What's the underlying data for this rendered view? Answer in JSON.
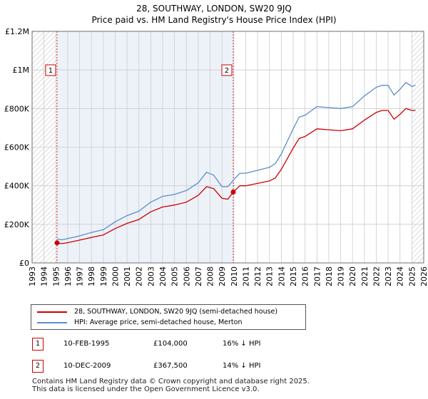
{
  "title": {
    "line1": "28, SOUTHWAY, LONDON, SW20 9JQ",
    "line2": "Price paid vs. HM Land Registry's House Price Index (HPI)"
  },
  "colors": {
    "property": "#cc0000",
    "hpi": "#5b8ec7",
    "shade": "#dbe5f3",
    "grid": "#cccccc",
    "marker_border": "#cc0000"
  },
  "chart_data": {
    "type": "line",
    "title": "Price paid vs. HM Land Registry's House Price Index (HPI)",
    "xlim": [
      1993,
      2026
    ],
    "ylim": [
      0,
      1200000
    ],
    "x_ticks": [
      1993,
      1994,
      1995,
      1996,
      1997,
      1998,
      1999,
      2000,
      2001,
      2002,
      2003,
      2004,
      2005,
      2006,
      2007,
      2008,
      2009,
      2010,
      2011,
      2012,
      2013,
      2014,
      2015,
      2016,
      2017,
      2018,
      2019,
      2020,
      2021,
      2022,
      2023,
      2024,
      2025,
      2026
    ],
    "y_ticks": [
      {
        "value": 0,
        "label": "£0"
      },
      {
        "value": 200000,
        "label": "£200K"
      },
      {
        "value": 400000,
        "label": "£400K"
      },
      {
        "value": 600000,
        "label": "£600K"
      },
      {
        "value": 800000,
        "label": "£800K"
      },
      {
        "value": 1000000,
        "label": "£1M"
      },
      {
        "value": 1200000,
        "label": "£1.2M"
      }
    ],
    "grid": true,
    "hatched_regions": [
      [
        1993,
        1995.1
      ],
      [
        2025.0,
        2026
      ]
    ],
    "shaded_region": [
      1995.1,
      2009.95
    ],
    "series": [
      {
        "name": "28, SOUTHWAY, LONDON, SW20 9JQ (semi-detached house)",
        "color": "#cc0000",
        "x": [
          1995.1,
          1995.5,
          1996,
          1997,
          1998,
          1999,
          2000,
          2001,
          2002,
          2003,
          2004,
          2005,
          2006,
          2007,
          2007.7,
          2008.3,
          2009,
          2009.5,
          2009.95,
          2010.5,
          2011,
          2012,
          2013,
          2013.5,
          2014,
          2014.5,
          2015,
          2015.5,
          2016,
          2017,
          2018,
          2019,
          2020,
          2021,
          2022,
          2022.5,
          2023,
          2023.5,
          2024,
          2024.5,
          2025,
          2025.3
        ],
        "values": [
          104000,
          100000,
          105000,
          118000,
          132000,
          145000,
          178000,
          205000,
          225000,
          265000,
          290000,
          300000,
          315000,
          350000,
          395000,
          385000,
          335000,
          330000,
          367500,
          400000,
          400000,
          412000,
          425000,
          440000,
          485000,
          540000,
          595000,
          645000,
          655000,
          695000,
          690000,
          685000,
          695000,
          740000,
          780000,
          790000,
          790000,
          745000,
          770000,
          800000,
          790000,
          790000
        ]
      },
      {
        "name": "HPI: Average price, semi-detached house, Merton",
        "color": "#5b8ec7",
        "x": [
          1995.1,
          1995.5,
          1996,
          1997,
          1998,
          1999,
          2000,
          2001,
          2002,
          2003,
          2004,
          2005,
          2006,
          2007,
          2007.7,
          2008.3,
          2009,
          2009.5,
          2009.95,
          2010.5,
          2011,
          2012,
          2013,
          2013.5,
          2014,
          2014.5,
          2015,
          2015.5,
          2016,
          2017,
          2018,
          2019,
          2020,
          2021,
          2022,
          2022.5,
          2023,
          2023.5,
          2024,
          2024.5,
          2025,
          2025.3
        ],
        "values": [
          124000,
          120000,
          126000,
          140000,
          158000,
          172000,
          213000,
          245000,
          268000,
          315000,
          345000,
          355000,
          375000,
          415000,
          470000,
          455000,
          395000,
          395000,
          428000,
          465000,
          465000,
          480000,
          495000,
          515000,
          565000,
          630000,
          695000,
          755000,
          765000,
          810000,
          805000,
          800000,
          810000,
          865000,
          910000,
          920000,
          920000,
          870000,
          900000,
          935000,
          915000,
          920000
        ]
      }
    ],
    "annotations": [
      {
        "label": "1",
        "x": 1995.1,
        "y": 104000
      },
      {
        "label": "2",
        "x": 2009.95,
        "y": 367500
      }
    ]
  },
  "legend": {
    "property_label": "28, SOUTHWAY, LONDON, SW20 9JQ (semi-detached house)",
    "hpi_label": "HPI: Average price, semi-detached house, Merton"
  },
  "sales": [
    {
      "num": "1",
      "date": "10-FEB-1995",
      "price": "£104,000",
      "hpi": "16% ↓ HPI"
    },
    {
      "num": "2",
      "date": "10-DEC-2009",
      "price": "£367,500",
      "hpi": "14% ↓ HPI"
    }
  ],
  "footer": {
    "line1": "Contains HM Land Registry data © Crown copyright and database right 2025.",
    "line2": "This data is licensed under the Open Government Licence v3.0."
  }
}
